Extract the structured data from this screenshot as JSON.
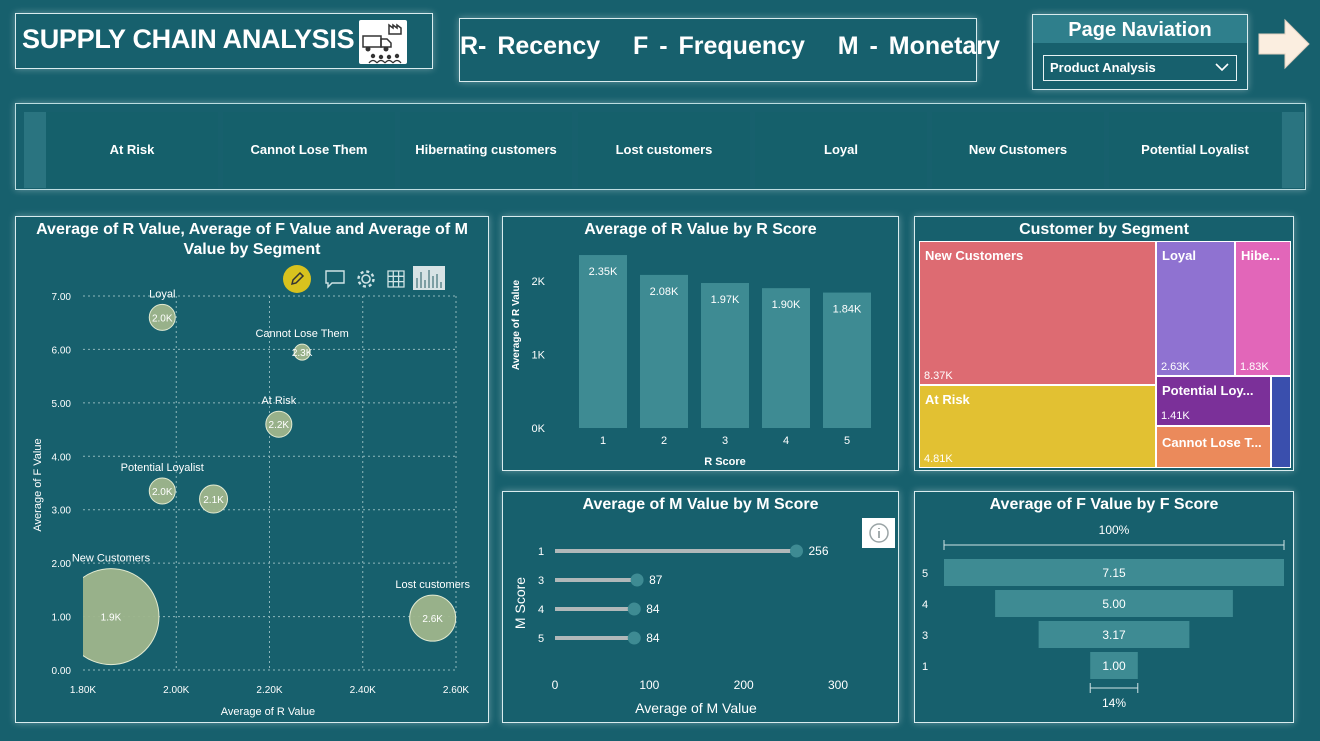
{
  "header": {
    "title": "SUPPLY CHAIN ANALYSIS",
    "title_icon": "supply-chain-icon",
    "rfm": "R- Recency   F - Frequency   M - Monetary"
  },
  "nav": {
    "title": "Page Naviation",
    "selected": "Product Analysis"
  },
  "segments": [
    "At Risk",
    "Cannot Lose Them",
    "Hibernating customers",
    "Lost customers",
    "Loyal",
    "New Customers",
    "Potential Loyalist"
  ],
  "scatter": {
    "title_line1": "Average of R Value, Average of F Value and Average of M",
    "title_line2": "Value by Segment",
    "toolbar_icons": [
      "edit-icon",
      "comment-icon",
      "gear-icon",
      "table-icon",
      "chart-icon"
    ]
  },
  "chart_data": [
    {
      "type": "scatter",
      "title": "Average of R Value, Average of F Value and Average of M Value by Segment",
      "xlabel": "Average of R Value",
      "ylabel": "Average of F Value",
      "x_ticks": [
        "1.80K",
        "2.00K",
        "2.20K",
        "2.40K",
        "2.60K"
      ],
      "y_ticks": [
        "0.00",
        "1.00",
        "2.00",
        "3.00",
        "4.00",
        "5.00",
        "6.00",
        "7.00"
      ],
      "xlim": [
        1800,
        2600
      ],
      "ylim": [
        0,
        7
      ],
      "points": [
        {
          "name": "Loyal",
          "x": 1970,
          "y": 6.6,
          "size_label": "2.0K",
          "size": 2000
        },
        {
          "name": "Cannot Lose Them",
          "x": 2270,
          "y": 5.95,
          "size_label": "2.3K",
          "size": 2300
        },
        {
          "name": "At Risk",
          "x": 2220,
          "y": 4.6,
          "size_label": "2.2K",
          "size": 2200
        },
        {
          "name": "Potential Loyalist",
          "x": 1970,
          "y": 3.35,
          "size_label": "2.0K",
          "size": 2000
        },
        {
          "name": "",
          "x": 2080,
          "y": 3.2,
          "size_label": "2.1K",
          "size": 2100
        },
        {
          "name": "New Customers",
          "x": 1860,
          "y": 1.0,
          "size_label": "1.9K",
          "size": 1900
        },
        {
          "name": "Lost customers",
          "x": 2550,
          "y": 0.97,
          "size_label": "2.6K",
          "size": 2600
        }
      ]
    },
    {
      "type": "bar",
      "title": "Average of R Value by R Score",
      "xlabel": "R Score",
      "ylabel": "Average of R Value",
      "categories": [
        "1",
        "2",
        "3",
        "4",
        "5"
      ],
      "values": [
        2350,
        2080,
        1970,
        1900,
        1840
      ],
      "value_labels": [
        "2.35K",
        "2.08K",
        "1.97K",
        "1.90K",
        "1.84K"
      ],
      "y_ticks": [
        "0K",
        "1K",
        "2K"
      ],
      "ylim": [
        0,
        2500
      ]
    },
    {
      "type": "treemap",
      "title": "Customer by Segment",
      "cells": [
        {
          "label": "New Customers",
          "value": "8.37K",
          "color": "#dd6b72"
        },
        {
          "label": "Loyal",
          "value": "2.63K",
          "color": "#8f72d1"
        },
        {
          "label": "Hibe...",
          "value": "1.83K",
          "color": "#e266b9"
        },
        {
          "label": "At Risk",
          "value": "4.81K",
          "color": "#e2c132"
        },
        {
          "label": "Potential Loy...",
          "value": "1.41K",
          "color": "#7b3099"
        },
        {
          "label": "Cannot Lose T...",
          "value": "",
          "color": "#eb8a5b"
        },
        {
          "label": "",
          "value": "",
          "color": "#3a4fad"
        }
      ]
    },
    {
      "type": "lollipop",
      "title": "Average of M Value by M Score",
      "xlabel": "Average of M Value",
      "ylabel": "M Score",
      "categories": [
        "1",
        "3",
        "4",
        "5"
      ],
      "values": [
        256,
        87,
        84,
        84
      ],
      "x_ticks": [
        "0",
        "100",
        "200",
        "300"
      ],
      "xlim": [
        0,
        300
      ]
    },
    {
      "type": "funnel",
      "title": "Average of F Value by F Score",
      "categories": [
        "5",
        "4",
        "3",
        "1"
      ],
      "values": [
        7.15,
        5.0,
        3.17,
        1.0
      ],
      "value_labels": [
        "7.15",
        "5.00",
        "3.17",
        "1.00"
      ],
      "top_percent": "100%",
      "bottom_percent": "14%"
    }
  ],
  "colors": {
    "background": "#17606d",
    "bar": "#3e8b93",
    "bubble": "#9fb68c",
    "lollipop_line": "#b0b8b9",
    "lollipop_dot": "#3e8b93"
  }
}
